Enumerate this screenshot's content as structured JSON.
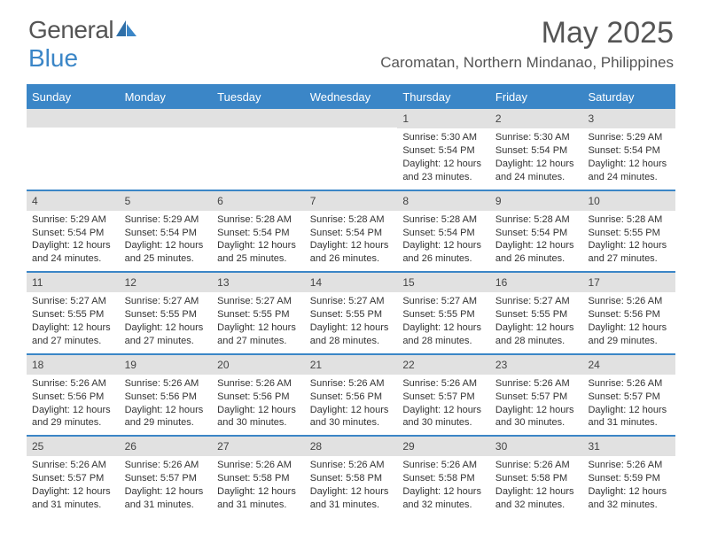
{
  "brand": {
    "name_part1": "General",
    "name_part2": "Blue"
  },
  "title": "May 2025",
  "location": "Caromatan, Northern Mindanao, Philippines",
  "colors": {
    "header_bg": "#3b86c7",
    "header_text": "#ffffff",
    "daynum_bg": "#e1e1e1",
    "text": "#333333",
    "divider": "#3b86c7"
  },
  "day_names": [
    "Sunday",
    "Monday",
    "Tuesday",
    "Wednesday",
    "Thursday",
    "Friday",
    "Saturday"
  ],
  "weeks": [
    [
      {},
      {},
      {},
      {},
      {
        "num": "1",
        "sunrise": "Sunrise: 5:30 AM",
        "sunset": "Sunset: 5:54 PM",
        "daylight": "Daylight: 12 hours and 23 minutes."
      },
      {
        "num": "2",
        "sunrise": "Sunrise: 5:30 AM",
        "sunset": "Sunset: 5:54 PM",
        "daylight": "Daylight: 12 hours and 24 minutes."
      },
      {
        "num": "3",
        "sunrise": "Sunrise: 5:29 AM",
        "sunset": "Sunset: 5:54 PM",
        "daylight": "Daylight: 12 hours and 24 minutes."
      }
    ],
    [
      {
        "num": "4",
        "sunrise": "Sunrise: 5:29 AM",
        "sunset": "Sunset: 5:54 PM",
        "daylight": "Daylight: 12 hours and 24 minutes."
      },
      {
        "num": "5",
        "sunrise": "Sunrise: 5:29 AM",
        "sunset": "Sunset: 5:54 PM",
        "daylight": "Daylight: 12 hours and 25 minutes."
      },
      {
        "num": "6",
        "sunrise": "Sunrise: 5:28 AM",
        "sunset": "Sunset: 5:54 PM",
        "daylight": "Daylight: 12 hours and 25 minutes."
      },
      {
        "num": "7",
        "sunrise": "Sunrise: 5:28 AM",
        "sunset": "Sunset: 5:54 PM",
        "daylight": "Daylight: 12 hours and 26 minutes."
      },
      {
        "num": "8",
        "sunrise": "Sunrise: 5:28 AM",
        "sunset": "Sunset: 5:54 PM",
        "daylight": "Daylight: 12 hours and 26 minutes."
      },
      {
        "num": "9",
        "sunrise": "Sunrise: 5:28 AM",
        "sunset": "Sunset: 5:54 PM",
        "daylight": "Daylight: 12 hours and 26 minutes."
      },
      {
        "num": "10",
        "sunrise": "Sunrise: 5:28 AM",
        "sunset": "Sunset: 5:55 PM",
        "daylight": "Daylight: 12 hours and 27 minutes."
      }
    ],
    [
      {
        "num": "11",
        "sunrise": "Sunrise: 5:27 AM",
        "sunset": "Sunset: 5:55 PM",
        "daylight": "Daylight: 12 hours and 27 minutes."
      },
      {
        "num": "12",
        "sunrise": "Sunrise: 5:27 AM",
        "sunset": "Sunset: 5:55 PM",
        "daylight": "Daylight: 12 hours and 27 minutes."
      },
      {
        "num": "13",
        "sunrise": "Sunrise: 5:27 AM",
        "sunset": "Sunset: 5:55 PM",
        "daylight": "Daylight: 12 hours and 27 minutes."
      },
      {
        "num": "14",
        "sunrise": "Sunrise: 5:27 AM",
        "sunset": "Sunset: 5:55 PM",
        "daylight": "Daylight: 12 hours and 28 minutes."
      },
      {
        "num": "15",
        "sunrise": "Sunrise: 5:27 AM",
        "sunset": "Sunset: 5:55 PM",
        "daylight": "Daylight: 12 hours and 28 minutes."
      },
      {
        "num": "16",
        "sunrise": "Sunrise: 5:27 AM",
        "sunset": "Sunset: 5:55 PM",
        "daylight": "Daylight: 12 hours and 28 minutes."
      },
      {
        "num": "17",
        "sunrise": "Sunrise: 5:26 AM",
        "sunset": "Sunset: 5:56 PM",
        "daylight": "Daylight: 12 hours and 29 minutes."
      }
    ],
    [
      {
        "num": "18",
        "sunrise": "Sunrise: 5:26 AM",
        "sunset": "Sunset: 5:56 PM",
        "daylight": "Daylight: 12 hours and 29 minutes."
      },
      {
        "num": "19",
        "sunrise": "Sunrise: 5:26 AM",
        "sunset": "Sunset: 5:56 PM",
        "daylight": "Daylight: 12 hours and 29 minutes."
      },
      {
        "num": "20",
        "sunrise": "Sunrise: 5:26 AM",
        "sunset": "Sunset: 5:56 PM",
        "daylight": "Daylight: 12 hours and 30 minutes."
      },
      {
        "num": "21",
        "sunrise": "Sunrise: 5:26 AM",
        "sunset": "Sunset: 5:56 PM",
        "daylight": "Daylight: 12 hours and 30 minutes."
      },
      {
        "num": "22",
        "sunrise": "Sunrise: 5:26 AM",
        "sunset": "Sunset: 5:57 PM",
        "daylight": "Daylight: 12 hours and 30 minutes."
      },
      {
        "num": "23",
        "sunrise": "Sunrise: 5:26 AM",
        "sunset": "Sunset: 5:57 PM",
        "daylight": "Daylight: 12 hours and 30 minutes."
      },
      {
        "num": "24",
        "sunrise": "Sunrise: 5:26 AM",
        "sunset": "Sunset: 5:57 PM",
        "daylight": "Daylight: 12 hours and 31 minutes."
      }
    ],
    [
      {
        "num": "25",
        "sunrise": "Sunrise: 5:26 AM",
        "sunset": "Sunset: 5:57 PM",
        "daylight": "Daylight: 12 hours and 31 minutes."
      },
      {
        "num": "26",
        "sunrise": "Sunrise: 5:26 AM",
        "sunset": "Sunset: 5:57 PM",
        "daylight": "Daylight: 12 hours and 31 minutes."
      },
      {
        "num": "27",
        "sunrise": "Sunrise: 5:26 AM",
        "sunset": "Sunset: 5:58 PM",
        "daylight": "Daylight: 12 hours and 31 minutes."
      },
      {
        "num": "28",
        "sunrise": "Sunrise: 5:26 AM",
        "sunset": "Sunset: 5:58 PM",
        "daylight": "Daylight: 12 hours and 31 minutes."
      },
      {
        "num": "29",
        "sunrise": "Sunrise: 5:26 AM",
        "sunset": "Sunset: 5:58 PM",
        "daylight": "Daylight: 12 hours and 32 minutes."
      },
      {
        "num": "30",
        "sunrise": "Sunrise: 5:26 AM",
        "sunset": "Sunset: 5:58 PM",
        "daylight": "Daylight: 12 hours and 32 minutes."
      },
      {
        "num": "31",
        "sunrise": "Sunrise: 5:26 AM",
        "sunset": "Sunset: 5:59 PM",
        "daylight": "Daylight: 12 hours and 32 minutes."
      }
    ]
  ]
}
